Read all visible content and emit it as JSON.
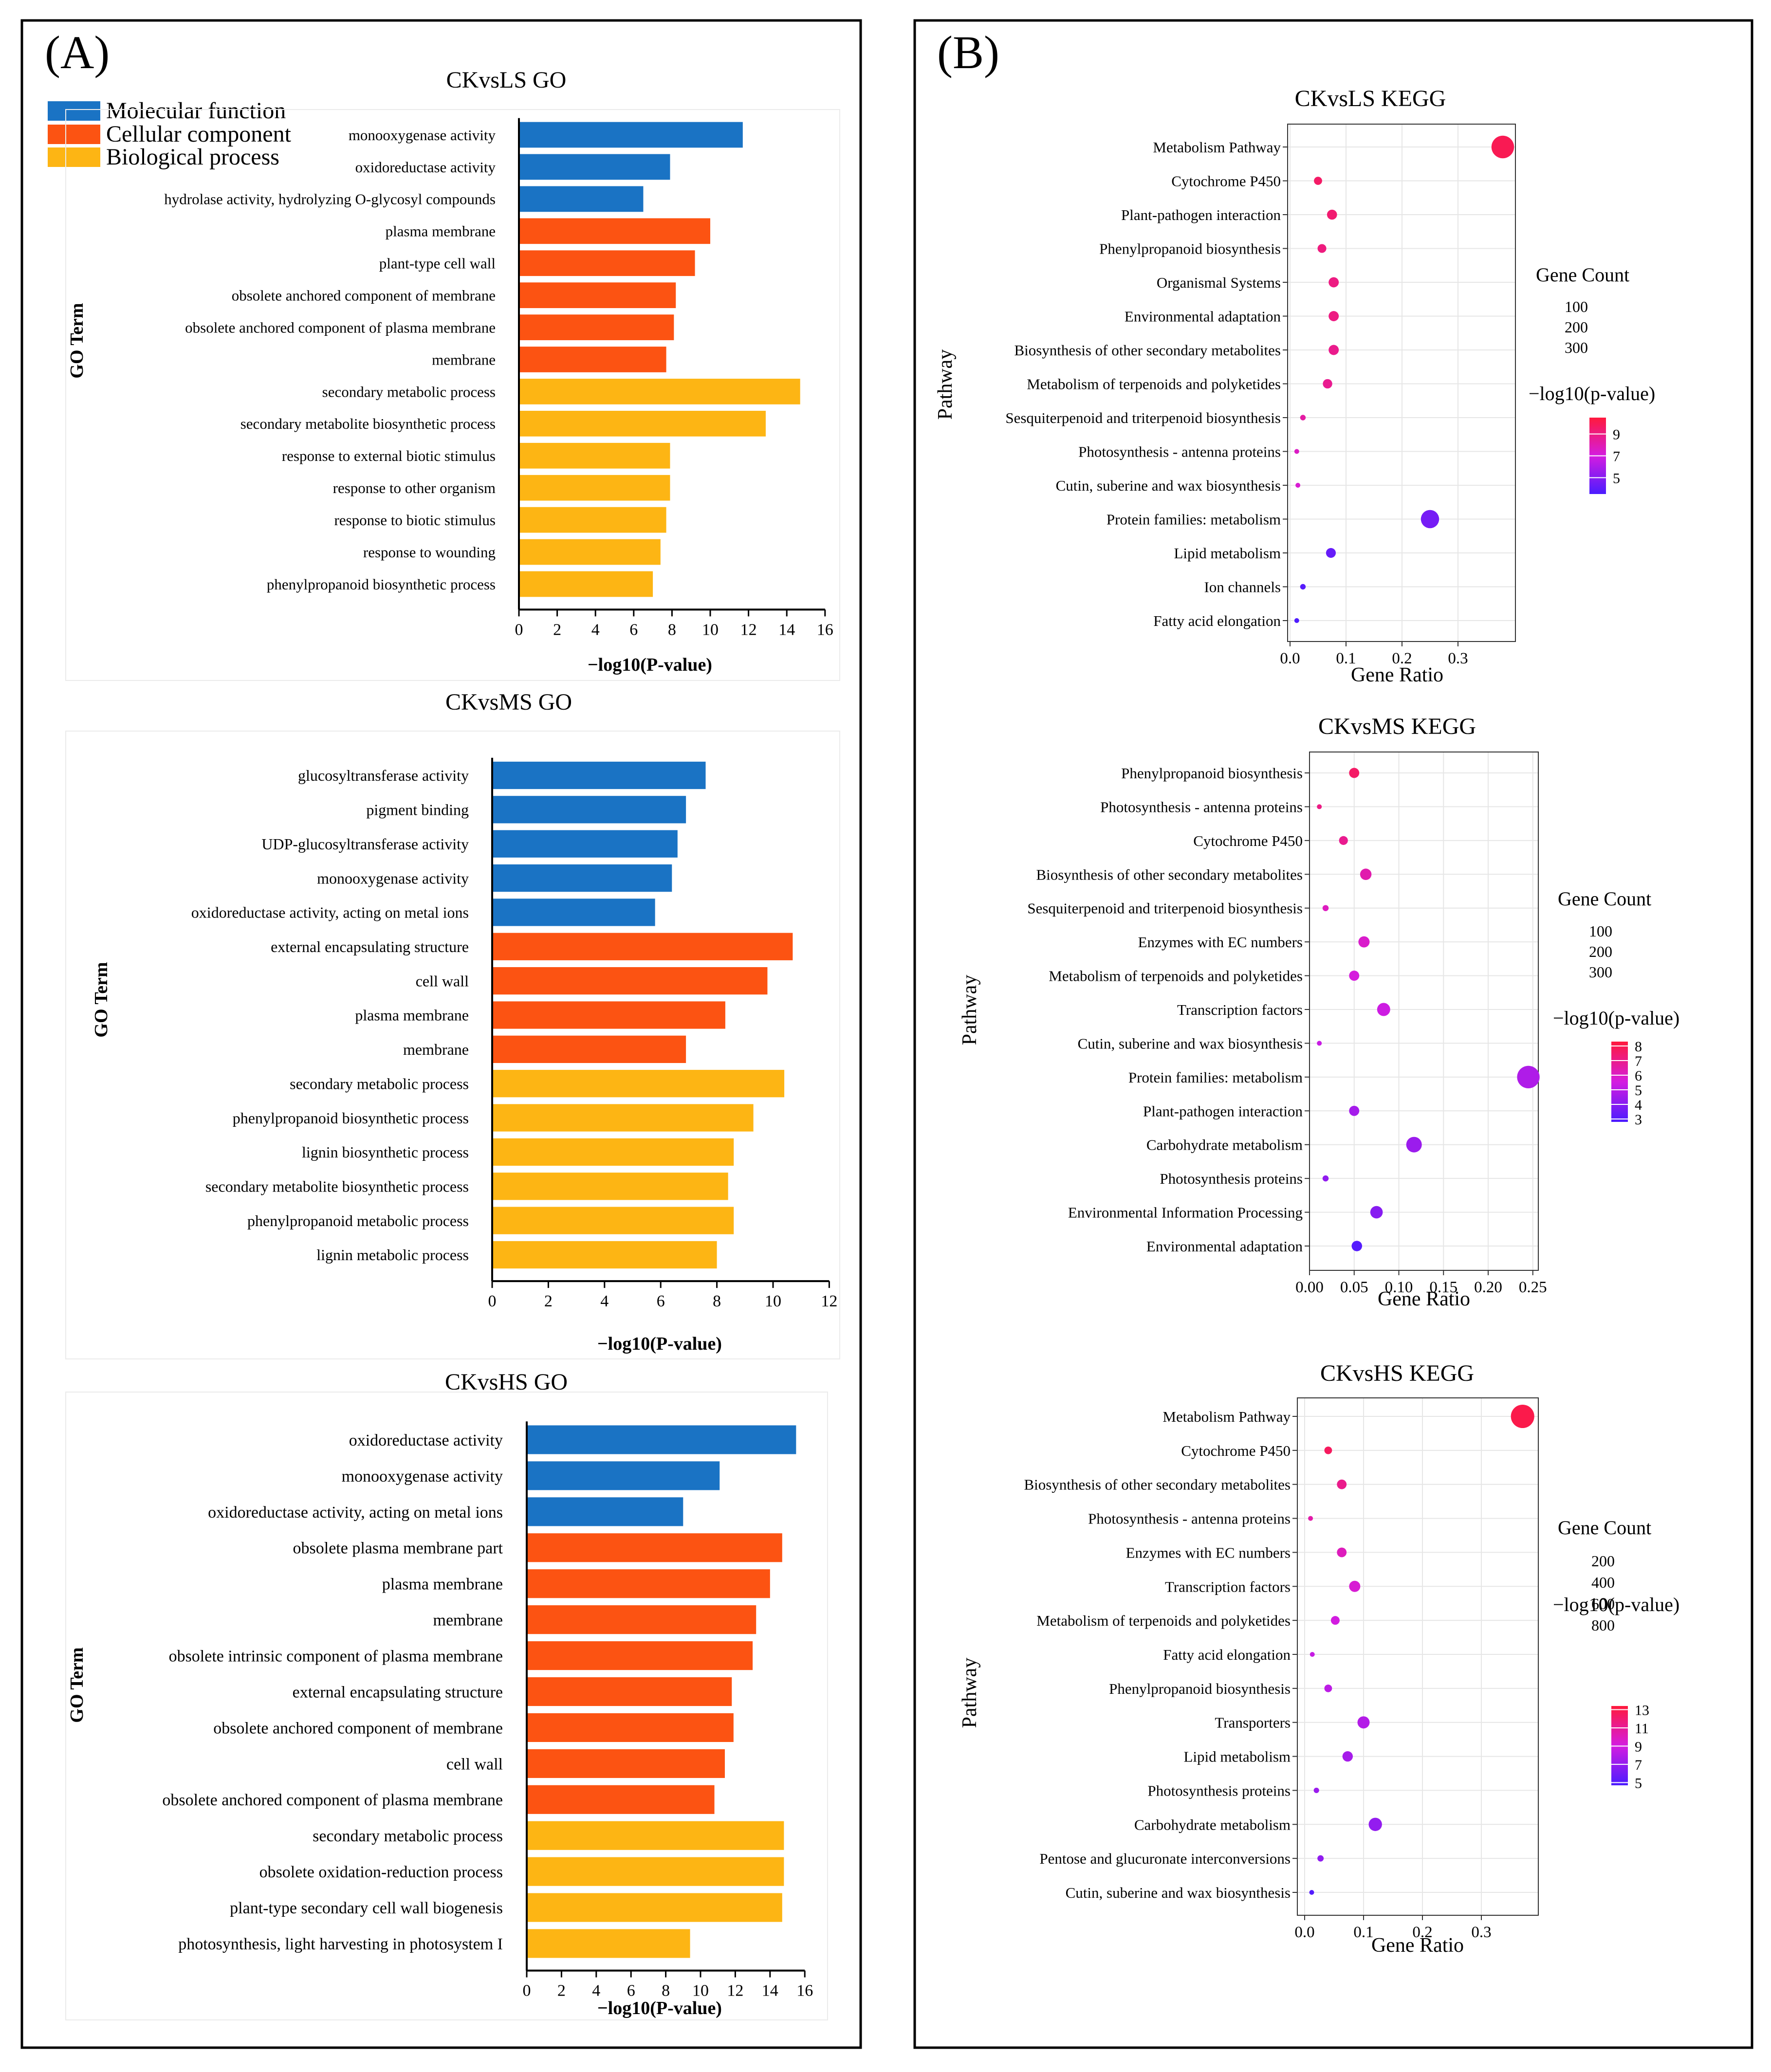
{
  "panels": {
    "A": {
      "label": "(A)"
    },
    "B": {
      "label": "(B)"
    }
  },
  "legend_go": {
    "items": [
      {
        "label": "Molecular function",
        "color": "#1a73c4"
      },
      {
        "label": "Cellular component",
        "color": "#fc5312"
      },
      {
        "label": "Biological process",
        "color": "#fdb514"
      }
    ]
  },
  "chart_data": [
    {
      "type": "bar",
      "orientation": "horizontal",
      "title": "CKvsLS GO",
      "xlabel": "−log10(P-value)",
      "ylabel": "GO Term",
      "xlim": [
        0,
        16
      ],
      "xticks": [
        0,
        2,
        4,
        6,
        8,
        10,
        12,
        14,
        16
      ],
      "categories": [
        "monooxygenase activity",
        "oxidoreductase activity",
        "hydrolase activity, hydrolyzing O-glycosyl compounds",
        "plasma membrane",
        "plant-type cell wall",
        "obsolete anchored component of membrane",
        "obsolete anchored component of plasma membrane",
        "membrane",
        "secondary metabolic process",
        "secondary metabolite biosynthetic process",
        "response to external biotic stimulus",
        "response to other organism",
        "response to biotic stimulus",
        "response to wounding",
        "phenylpropanoid biosynthetic process"
      ],
      "values": [
        11.7,
        7.9,
        6.5,
        10.0,
        9.2,
        8.2,
        8.1,
        7.7,
        14.7,
        12.9,
        7.9,
        7.9,
        7.7,
        7.4,
        7.0
      ],
      "groups": [
        "Molecular function",
        "Molecular function",
        "Molecular function",
        "Cellular component",
        "Cellular component",
        "Cellular component",
        "Cellular component",
        "Cellular component",
        "Biological process",
        "Biological process",
        "Biological process",
        "Biological process",
        "Biological process",
        "Biological process",
        "Biological process"
      ]
    },
    {
      "type": "bar",
      "orientation": "horizontal",
      "title": "CKvsMS GO",
      "xlabel": "−log10(P-value)",
      "ylabel": "GO Term",
      "xlim": [
        0,
        12
      ],
      "xticks": [
        0,
        2,
        4,
        6,
        8,
        10,
        12
      ],
      "categories": [
        "glucosyltransferase activity",
        "pigment binding",
        "UDP-glucosyltransferase activity",
        "monooxygenase activity",
        "oxidoreductase activity, acting on metal ions",
        "external encapsulating structure",
        "cell wall",
        "plasma membrane",
        "membrane",
        "secondary metabolic process",
        "phenylpropanoid biosynthetic process",
        "lignin biosynthetic process",
        "secondary metabolite biosynthetic process",
        "phenylpropanoid metabolic process",
        "lignin metabolic process"
      ],
      "values": [
        7.6,
        6.9,
        6.6,
        6.4,
        5.8,
        10.7,
        9.8,
        8.3,
        6.9,
        10.4,
        9.3,
        8.6,
        8.4,
        8.6,
        8.0
      ],
      "groups": [
        "Molecular function",
        "Molecular function",
        "Molecular function",
        "Molecular function",
        "Molecular function",
        "Cellular component",
        "Cellular component",
        "Cellular component",
        "Cellular component",
        "Biological process",
        "Biological process",
        "Biological process",
        "Biological process",
        "Biological process",
        "Biological process"
      ]
    },
    {
      "type": "bar",
      "orientation": "horizontal",
      "title": "CKvsHS GO",
      "xlabel": "−log10(P-value)",
      "ylabel": "GO Term",
      "xlim": [
        0,
        16
      ],
      "xticks": [
        0,
        2,
        4,
        6,
        8,
        10,
        12,
        14,
        16
      ],
      "categories": [
        "oxidoreductase activity",
        "monooxygenase activity",
        "oxidoreductase activity, acting on metal ions",
        "obsolete plasma membrane part",
        "plasma membrane",
        "membrane",
        "obsolete intrinsic component of plasma membrane",
        "external encapsulating structure",
        "obsolete anchored component of membrane",
        "cell wall",
        "obsolete anchored component of plasma membrane",
        "secondary metabolic process",
        "obsolete oxidation-reduction process",
        "plant-type secondary cell wall biogenesis",
        "photosynthesis, light harvesting in photosystem I"
      ],
      "values": [
        15.5,
        11.1,
        9.0,
        14.7,
        14.0,
        13.2,
        13.0,
        11.8,
        11.9,
        11.4,
        10.8,
        14.8,
        14.8,
        14.7,
        9.4
      ],
      "groups": [
        "Molecular function",
        "Molecular function",
        "Molecular function",
        "Cellular component",
        "Cellular component",
        "Cellular component",
        "Cellular component",
        "Cellular component",
        "Cellular component",
        "Cellular component",
        "Cellular component",
        "Biological process",
        "Biological process",
        "Biological process",
        "Biological process"
      ]
    },
    {
      "type": "scatter",
      "title": "CKvsLS KEGG",
      "xlabel": "Gene Ratio",
      "ylabel": "Pathway",
      "xlim": [
        0,
        0.4
      ],
      "xticks": [
        0.0,
        0.1,
        0.2,
        0.3
      ],
      "xtick_labels": [
        "0.0",
        "0.1",
        "0.2",
        "0.3"
      ],
      "categories": [
        "Metabolism Pathway",
        "Cytochrome P450",
        "Plant-pathogen interaction",
        "Phenylpropanoid biosynthesis",
        "Organismal Systems",
        "Environmental adaptation",
        "Biosynthesis of other secondary metabolites",
        "Metabolism of terpenoids and polyketides",
        "Sesquiterpenoid and triterpenoid biosynthesis",
        "Photosynthesis - antenna proteins",
        "Cutin, suberine and wax biosynthesis",
        "Protein families: metabolism",
        "Lipid metabolism",
        "Ion channels",
        "Fatty acid elongation"
      ],
      "gene_ratio": [
        0.38,
        0.05,
        0.075,
        0.057,
        0.078,
        0.078,
        0.078,
        0.067,
        0.023,
        0.012,
        0.014,
        0.25,
        0.073,
        0.023,
        0.012
      ],
      "gene_count": [
        345,
        45,
        68,
        52,
        70,
        70,
        70,
        60,
        21,
        11,
        13,
        225,
        65,
        21,
        11
      ],
      "neg_log10_p": [
        10.0,
        9.6,
        9.4,
        9.1,
        9.0,
        9.0,
        8.8,
        8.7,
        8.3,
        7.6,
        7.3,
        4.6,
        4.2,
        3.8,
        3.6
      ],
      "size_legend": {
        "title": "Gene Count",
        "values": [
          100,
          200,
          300
        ]
      },
      "color_legend": {
        "title": "−log10(p-value)",
        "range": [
          3.5,
          10.5
        ],
        "ticks": [
          "9",
          "7",
          "5"
        ],
        "tick_values": [
          9,
          7,
          5
        ],
        "low_color": "#4b1cff",
        "mid_color": "#d41ce0",
        "high_color": "#ff1a3c"
      }
    },
    {
      "type": "scatter",
      "title": "CKvsMS KEGG",
      "xlabel": "Gene Ratio",
      "ylabel": "Pathway",
      "xlim": [
        0,
        0.255
      ],
      "xticks": [
        0.0,
        0.05,
        0.1,
        0.15,
        0.2,
        0.25
      ],
      "xtick_labels": [
        "0.00",
        "0.05",
        "0.10",
        "0.15",
        "0.20",
        "0.25"
      ],
      "categories": [
        "Phenylpropanoid biosynthesis",
        "Photosynthesis - antenna proteins",
        "Cytochrome P450",
        "Biosynthesis of other secondary metabolites",
        "Sesquiterpenoid and triterpenoid biosynthesis",
        "Enzymes with EC numbers",
        "Metabolism of terpenoids and polyketides",
        "Transcription factors",
        "Cutin, suberine and wax biosynthesis",
        "Protein families: metabolism",
        "Plant-pathogen interaction",
        "Carbohydrate metabolism",
        "Photosynthesis proteins",
        "Environmental Information Processing",
        "Environmental adaptation"
      ],
      "gene_ratio": [
        0.05,
        0.011,
        0.038,
        0.063,
        0.018,
        0.061,
        0.05,
        0.083,
        0.011,
        0.245,
        0.05,
        0.117,
        0.018,
        0.075,
        0.053
      ],
      "gene_count": [
        70,
        15,
        53,
        88,
        25,
        85,
        70,
        116,
        15,
        343,
        70,
        164,
        25,
        105,
        74
      ],
      "neg_log10_p": [
        7.6,
        7.1,
        6.9,
        6.4,
        6.1,
        5.9,
        5.6,
        5.4,
        5.3,
        4.8,
        4.6,
        4.4,
        4.2,
        4.0,
        3.0
      ],
      "size_legend": {
        "title": "Gene Count",
        "values": [
          100,
          200,
          300
        ]
      },
      "color_legend": {
        "title": "−log10(p-value)",
        "range": [
          2.8,
          8.3
        ],
        "ticks": [
          "8",
          "7",
          "6",
          "5",
          "4",
          "3"
        ],
        "tick_values": [
          8,
          7,
          6,
          5,
          4,
          3
        ],
        "low_color": "#4b1cff",
        "mid_color": "#d41ce0",
        "high_color": "#ff1a3c"
      }
    },
    {
      "type": "scatter",
      "title": "CKvsHS KEGG",
      "xlabel": "Gene Ratio",
      "ylabel": "Pathway",
      "xlim": [
        0,
        0.395
      ],
      "xticks": [
        0.0,
        0.1,
        0.2,
        0.3
      ],
      "xtick_labels": [
        "0.0",
        "0.1",
        "0.2",
        "0.3"
      ],
      "categories": [
        "Metabolism Pathway",
        "Cytochrome P450",
        "Biosynthesis of other secondary metabolites",
        "Photosynthesis - antenna proteins",
        "Enzymes with EC numbers",
        "Transcription factors",
        "Metabolism of terpenoids and polyketides",
        "Fatty acid elongation",
        "Phenylpropanoid biosynthesis",
        "Transporters",
        "Lipid metabolism",
        "Photosynthesis proteins",
        "Carbohydrate metabolism",
        "Pentose and glucuronate interconversions",
        "Cutin, suberine and wax biosynthesis"
      ],
      "gene_ratio": [
        0.37,
        0.04,
        0.063,
        0.01,
        0.063,
        0.085,
        0.052,
        0.013,
        0.04,
        0.1,
        0.073,
        0.02,
        0.12,
        0.027,
        0.012
      ],
      "gene_count": [
        800,
        86,
        136,
        22,
        136,
        183,
        112,
        28,
        86,
        216,
        158,
        43,
        259,
        58,
        26
      ],
      "neg_log10_p": [
        13.0,
        12.5,
        11.3,
        10.5,
        10.0,
        9.4,
        9.0,
        8.6,
        8.3,
        8.0,
        7.6,
        7.2,
        7.0,
        6.9,
        5.0
      ],
      "size_legend": {
        "title": "Gene Count",
        "values": [
          200,
          400,
          600,
          800
        ]
      },
      "color_legend": {
        "title": "−log10(p-value)",
        "range": [
          4.7,
          13.4
        ],
        "ticks": [
          "13",
          "11",
          "9",
          "7",
          "5"
        ],
        "tick_values": [
          13,
          11,
          9,
          7,
          5
        ],
        "low_color": "#4b1cff",
        "mid_color": "#d41ce0",
        "high_color": "#ff1a3c"
      }
    }
  ]
}
